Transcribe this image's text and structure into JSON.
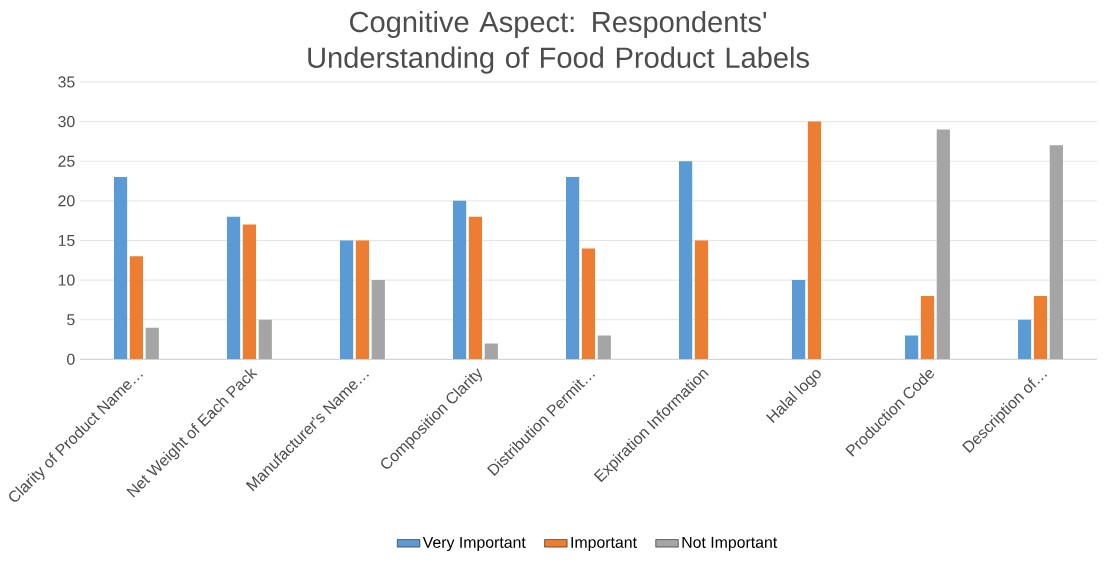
{
  "chart_data": {
    "type": "bar",
    "title": "Cognitive Aspect: Respondents' Understanding of Food Product Labels",
    "categories": [
      "Clarity of Product Name…",
      "Net Weight of Each Pack",
      "Manufacturer's Name…",
      "Composition Clarity",
      "Distribution Permit…",
      "Expiration Information",
      "Halal logo",
      "Production Code",
      "Description of…"
    ],
    "series": [
      {
        "name": "Very Important",
        "color": "#5b9bd5",
        "values": [
          23,
          18,
          15,
          20,
          23,
          25,
          10,
          3,
          5
        ]
      },
      {
        "name": "Important",
        "color": "#ed7d31",
        "values": [
          13,
          17,
          15,
          18,
          14,
          15,
          30,
          8,
          8
        ]
      },
      {
        "name": "Not Important",
        "color": "#a5a5a5",
        "values": [
          4,
          5,
          10,
          2,
          3,
          0,
          0,
          29,
          27
        ]
      }
    ],
    "ylim": [
      0,
      35
    ],
    "yticks": [
      0,
      5,
      10,
      15,
      20,
      25,
      30,
      35
    ],
    "grid": "y",
    "legend": "bottom"
  }
}
